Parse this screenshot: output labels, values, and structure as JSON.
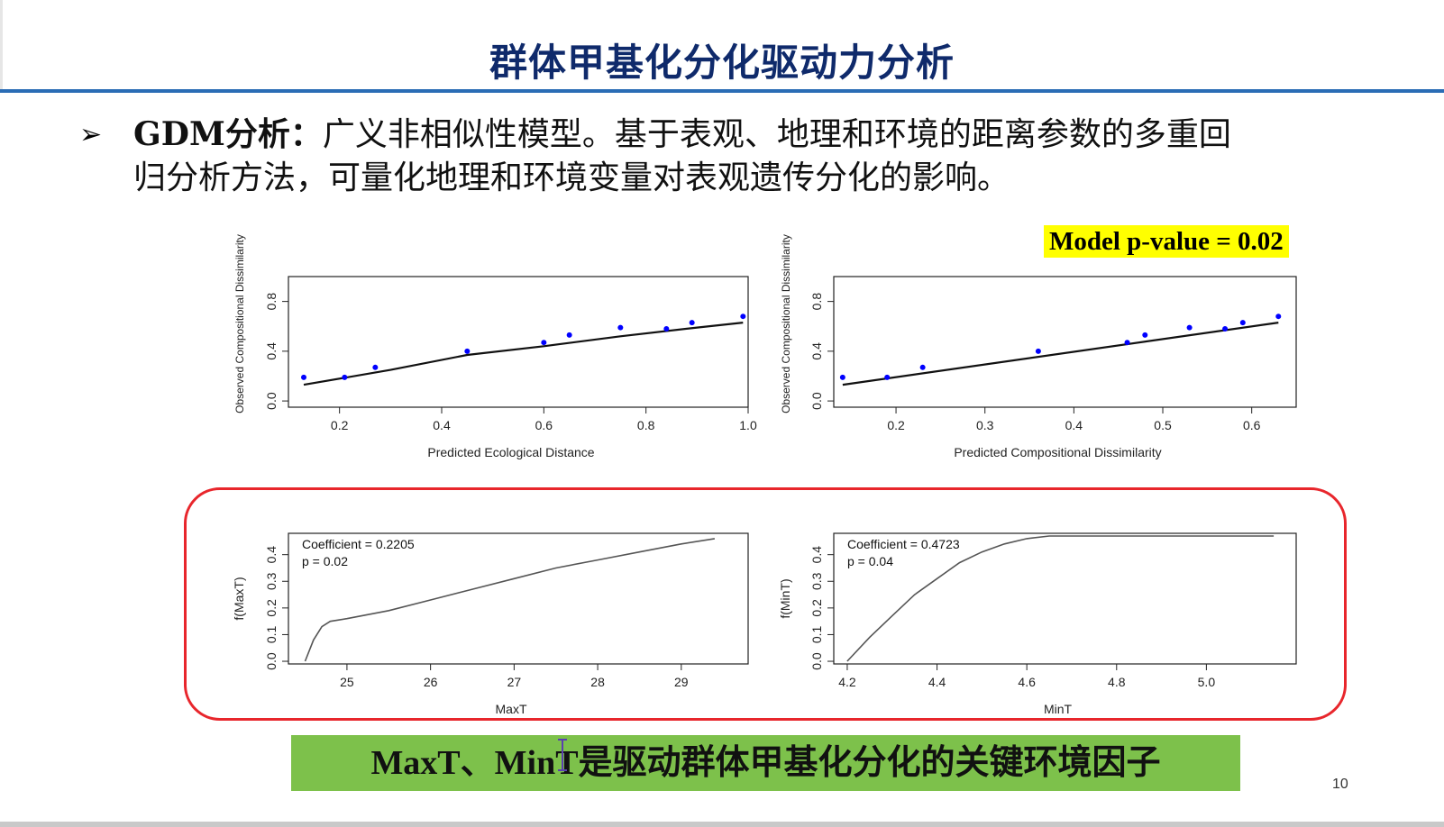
{
  "slide": {
    "title": "群体甲基化分化驱动力分析",
    "bullet_label": "GDM分析：",
    "bullet_text_1": "广义非相似性模型。基于表观、地理和环境的距离参数的多重回",
    "bullet_text_2": "归分析方法，可量化地理和环境变量对表观遗传分化的影响。",
    "model_pvalue": "Model p-value = 0.02",
    "conclusion": "MaxT、MinT是驱动群体甲基化分化的关键环境因子",
    "page_number": "10",
    "colors": {
      "title": "#0f2a6b",
      "rule": "#2a6cb5",
      "highlight": "#ffff00",
      "box": "#e8262c",
      "conclusion_bg": "#7dc14b",
      "points": "#0000ff"
    }
  },
  "chart_data": [
    {
      "type": "scatter",
      "xlabel": "Predicted Ecological Distance",
      "ylabel": "Observed Compositional Dissimilarity",
      "xlim": [
        0.1,
        1.0
      ],
      "ylim": [
        -0.05,
        1.0
      ],
      "xticks": [
        "0.2",
        "0.4",
        "0.6",
        "0.8",
        "1.0"
      ],
      "yticks": [
        "0.0",
        "0.4",
        "0.8"
      ],
      "points": [
        [
          0.13,
          0.19
        ],
        [
          0.21,
          0.19
        ],
        [
          0.27,
          0.27
        ],
        [
          0.45,
          0.4
        ],
        [
          0.6,
          0.47
        ],
        [
          0.65,
          0.53
        ],
        [
          0.75,
          0.59
        ],
        [
          0.84,
          0.58
        ],
        [
          0.89,
          0.63
        ],
        [
          0.99,
          0.68
        ]
      ],
      "fit_line": [
        [
          0.13,
          0.13
        ],
        [
          0.3,
          0.25
        ],
        [
          0.45,
          0.37
        ],
        [
          0.6,
          0.44
        ],
        [
          0.75,
          0.52
        ],
        [
          0.9,
          0.59
        ],
        [
          0.99,
          0.63
        ]
      ]
    },
    {
      "type": "scatter",
      "xlabel": "Predicted Compositional Dissimilarity",
      "ylabel": "Observed Compositional Dissimilarity",
      "xlim": [
        0.13,
        0.65
      ],
      "ylim": [
        -0.05,
        1.0
      ],
      "xticks": [
        "0.2",
        "0.3",
        "0.4",
        "0.5",
        "0.6"
      ],
      "yticks": [
        "0.0",
        "0.4",
        "0.8"
      ],
      "points": [
        [
          0.14,
          0.19
        ],
        [
          0.19,
          0.19
        ],
        [
          0.23,
          0.27
        ],
        [
          0.36,
          0.4
        ],
        [
          0.46,
          0.47
        ],
        [
          0.48,
          0.53
        ],
        [
          0.53,
          0.59
        ],
        [
          0.57,
          0.58
        ],
        [
          0.59,
          0.63
        ],
        [
          0.63,
          0.68
        ]
      ],
      "fit_line": [
        [
          0.14,
          0.13
        ],
        [
          0.63,
          0.63
        ]
      ]
    },
    {
      "type": "line",
      "xlabel": "MaxT",
      "ylabel": "f(MaxT)",
      "annotations": [
        "Coefficient = 0.2205",
        "p = 0.02"
      ],
      "xlim": [
        24.3,
        29.8
      ],
      "ylim": [
        -0.01,
        0.48
      ],
      "xticks": [
        "25",
        "26",
        "27",
        "28",
        "29"
      ],
      "yticks": [
        "0.0",
        "0.1",
        "0.2",
        "0.3",
        "0.4"
      ],
      "x": [
        24.5,
        24.6,
        24.7,
        24.8,
        25.0,
        25.5,
        26.0,
        26.5,
        27.0,
        27.5,
        28.0,
        28.5,
        29.0,
        29.4
      ],
      "y": [
        0.0,
        0.08,
        0.13,
        0.15,
        0.16,
        0.19,
        0.23,
        0.27,
        0.31,
        0.35,
        0.38,
        0.41,
        0.44,
        0.46
      ]
    },
    {
      "type": "line",
      "xlabel": "MinT",
      "ylabel": "f(MinT)",
      "annotations": [
        "Coefficient = 0.4723",
        "p = 0.04"
      ],
      "xlim": [
        4.17,
        5.2
      ],
      "ylim": [
        -0.01,
        0.48
      ],
      "xticks": [
        "4.2",
        "4.4",
        "4.6",
        "4.8",
        "5.0"
      ],
      "yticks": [
        "0.0",
        "0.1",
        "0.2",
        "0.3",
        "0.4"
      ],
      "x": [
        4.2,
        4.25,
        4.3,
        4.35,
        4.4,
        4.45,
        4.5,
        4.55,
        4.6,
        4.65,
        5.15
      ],
      "y": [
        0.0,
        0.09,
        0.17,
        0.25,
        0.31,
        0.37,
        0.41,
        0.44,
        0.46,
        0.47,
        0.47
      ]
    }
  ]
}
